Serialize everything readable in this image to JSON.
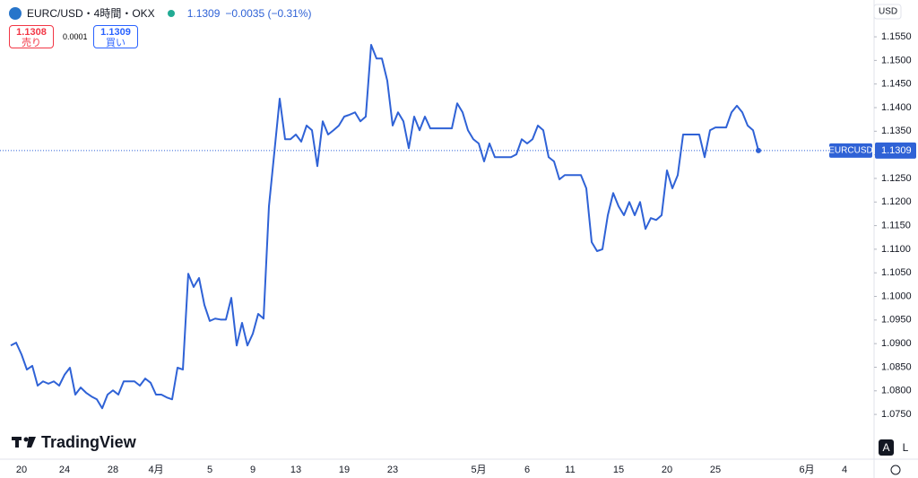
{
  "header": {
    "symbol": "EURC/USD・4時間・OKX",
    "price": "1.1309",
    "change": "−0.0035 (−0.31%)",
    "sell_price": "1.1308",
    "sell_label": "売り",
    "spread": "0.0001",
    "buy_price": "1.1309",
    "buy_label": "買い",
    "currency": "USD",
    "logo": "TradingView",
    "auto_button": "A",
    "log_button": "L"
  },
  "chart_data": {
    "type": "line",
    "color": "#2f62d6",
    "categories": [
      null,
      null,
      "20",
      null,
      null,
      null,
      null,
      null,
      null,
      null,
      "24",
      null,
      null,
      null,
      null,
      null,
      null,
      null,
      null,
      "28",
      null,
      null,
      null,
      null,
      null,
      null,
      null,
      "4月",
      null,
      null,
      null,
      null,
      null,
      null,
      null,
      null,
      null,
      "5",
      null,
      null,
      null,
      null,
      null,
      null,
      null,
      "9",
      null,
      null,
      null,
      null,
      null,
      null,
      null,
      "13",
      null,
      null,
      null,
      null,
      null,
      null,
      null,
      null,
      "19",
      null,
      null,
      null,
      null,
      null,
      null,
      null,
      null,
      "23",
      null,
      null,
      null,
      null,
      null,
      null,
      null,
      null,
      null,
      null,
      null,
      null,
      null,
      null,
      null,
      "5月",
      null,
      null,
      null,
      null,
      null,
      null,
      null,
      null,
      "6",
      null,
      null,
      null,
      null,
      null,
      null,
      null,
      "11",
      null,
      null,
      null,
      null,
      null,
      null,
      null,
      null,
      "15",
      null,
      null,
      null,
      null,
      null,
      null,
      null,
      null,
      "20",
      null,
      null,
      null,
      null,
      null,
      null,
      null,
      null,
      "25",
      null,
      null,
      null,
      null,
      null,
      null,
      null,
      null,
      null,
      null,
      null,
      null,
      null,
      null,
      null,
      null,
      "6月",
      null,
      null,
      null,
      null,
      null,
      null,
      "4",
      null,
      null,
      null,
      null,
      null
    ],
    "values": [
      1.0896,
      1.0902,
      1.0877,
      1.0845,
      1.0853,
      1.0811,
      1.082,
      1.0815,
      1.082,
      1.0811,
      1.0834,
      1.0849,
      1.0792,
      1.0807,
      1.0796,
      1.0788,
      1.0782,
      1.0763,
      1.0792,
      1.0801,
      1.0792,
      1.082,
      1.082,
      1.082,
      1.0811,
      1.0826,
      1.0817,
      1.0792,
      1.0792,
      1.0786,
      1.0782,
      1.0849,
      1.0845,
      1.1048,
      1.102,
      1.1039,
      1.0982,
      1.0948,
      1.0953,
      1.0951,
      1.0951,
      1.0997,
      1.0896,
      1.0944,
      1.0896,
      1.0921,
      1.0963,
      1.0953,
      1.1191,
      1.1305,
      1.1419,
      1.1333,
      1.1333,
      1.1343,
      1.1328,
      1.1362,
      1.1352,
      1.1276,
      1.1371,
      1.1343,
      1.1352,
      1.1362,
      1.1381,
      1.1385,
      1.139,
      1.1371,
      1.1381,
      1.1533,
      1.1504,
      1.1504,
      1.1457,
      1.1362,
      1.139,
      1.1371,
      1.1314,
      1.1381,
      1.1352,
      1.1381,
      1.1356,
      1.1356,
      1.1356,
      1.1356,
      1.1356,
      1.1409,
      1.139,
      1.1352,
      1.1333,
      1.1324,
      1.1286,
      1.1324,
      1.1295,
      1.1295,
      1.1295,
      1.1295,
      1.1301,
      1.1333,
      1.1324,
      1.1333,
      1.1362,
      1.1352,
      1.1295,
      1.1286,
      1.1248,
      1.1257,
      1.1257,
      1.1257,
      1.1257,
      1.1229,
      1.1115,
      1.1096,
      1.11,
      1.1172,
      1.1219,
      1.1191,
      1.1172,
      1.12,
      1.1172,
      1.12,
      1.1143,
      1.1166,
      1.1162,
      1.1172,
      1.1267,
      1.1229,
      1.1257,
      1.1343,
      1.1343,
      1.1343,
      1.1343,
      1.1295,
      1.1352,
      1.1358,
      1.1358,
      1.1358,
      1.139,
      1.1404,
      1.139,
      1.1362,
      1.1352,
      1.1309,
      null,
      null,
      null,
      null,
      null,
      null,
      null,
      null,
      null,
      null,
      null,
      null,
      null,
      null,
      null,
      null,
      null,
      null,
      null,
      null,
      null
    ],
    "ylim": [
      1.0659,
      1.1628
    ],
    "yticks": [
      {
        "value": 1.075,
        "label": "1.0750"
      },
      {
        "value": 1.08,
        "label": "1.0800"
      },
      {
        "value": 1.085,
        "label": "1.0850"
      },
      {
        "value": 1.09,
        "label": "1.0900"
      },
      {
        "value": 1.095,
        "label": "1.0950"
      },
      {
        "value": 1.1,
        "label": "1.1000"
      },
      {
        "value": 1.105,
        "label": "1.1050"
      },
      {
        "value": 1.11,
        "label": "1.1100"
      },
      {
        "value": 1.115,
        "label": "1.1150"
      },
      {
        "value": 1.12,
        "label": "1.1200"
      },
      {
        "value": 1.125,
        "label": "1.1250"
      },
      {
        "value": 1.13,
        "label": "1.1300"
      },
      {
        "value": 1.135,
        "label": "1.1350"
      },
      {
        "value": 1.14,
        "label": "1.1400"
      },
      {
        "value": 1.145,
        "label": "1.1450"
      },
      {
        "value": 1.15,
        "label": "1.1500"
      },
      {
        "value": 1.155,
        "label": "1.1550"
      }
    ],
    "last_label": "EURCUSD",
    "last_value": 1.1309
  }
}
